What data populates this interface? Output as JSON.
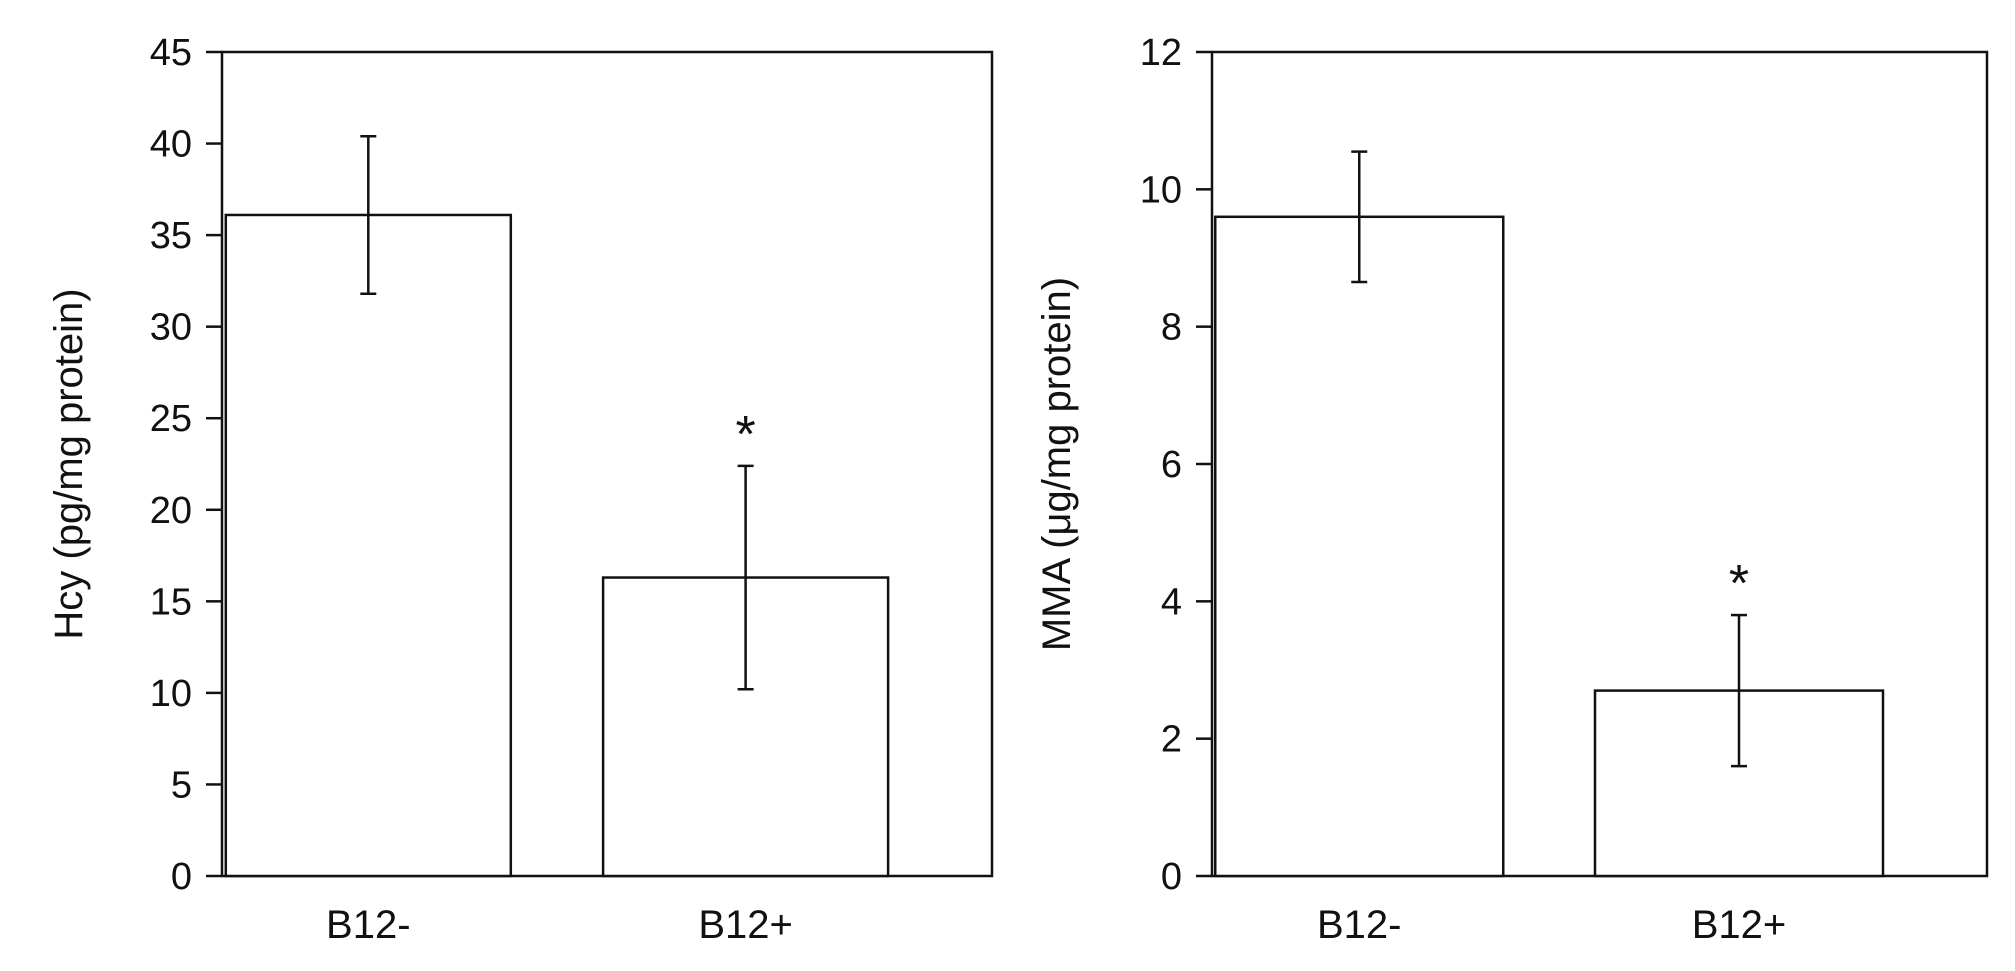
{
  "chart_data": [
    {
      "type": "bar",
      "title": "",
      "xlabel": "",
      "ylabel": "Hcy (pg/mg protein)",
      "categories": [
        "B12-",
        "B12+"
      ],
      "values": [
        36.1,
        16.3
      ],
      "error": [
        4.3,
        6.1
      ],
      "significance": [
        "",
        "*"
      ],
      "ylim": [
        0,
        45
      ],
      "yticks": [
        0,
        5,
        10,
        15,
        20,
        25,
        30,
        35,
        40,
        45
      ],
      "grid": false,
      "bar_color": "#ffffff",
      "edge_color": "#111111"
    },
    {
      "type": "bar",
      "title": "",
      "xlabel": "",
      "ylabel": "MMA (μg/mg protein)",
      "categories": [
        "B12-",
        "B12+"
      ],
      "values": [
        9.6,
        2.7
      ],
      "error": [
        0.95,
        1.1
      ],
      "significance": [
        "",
        "*"
      ],
      "ylim": [
        0,
        12
      ],
      "yticks": [
        0,
        2,
        4,
        6,
        8,
        10,
        12
      ],
      "grid": false,
      "bar_color": "#ffffff",
      "edge_color": "#111111"
    }
  ]
}
